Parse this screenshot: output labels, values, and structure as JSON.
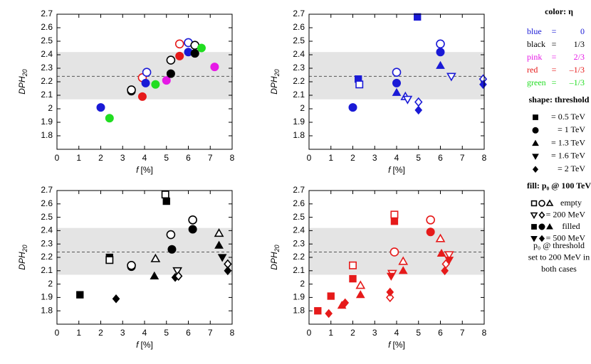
{
  "chart_data": [
    {
      "type": "scatter",
      "ylabel": "DPH",
      "ylabel_subscript": "20",
      "xlabel": "f",
      "xlabel_unit": "[%]",
      "xlim": [
        0,
        8
      ],
      "ylim": [
        1.7,
        2.7
      ],
      "xticks": [
        0,
        1,
        2,
        3,
        4,
        5,
        6,
        7,
        8
      ],
      "yticks": [
        1.8,
        1.9,
        2,
        2.1,
        2.2,
        2.3,
        2.4,
        2.5,
        2.6,
        2.7
      ],
      "band": [
        2.07,
        2.42
      ],
      "reference_line": 2.24,
      "points": [
        {
          "x": 2.0,
          "y": 2.01,
          "color": "#1a1ad6",
          "shape": "circle",
          "fill": true
        },
        {
          "x": 2.4,
          "y": 1.93,
          "color": "#21dd21",
          "shape": "circle",
          "fill": true
        },
        {
          "x": 3.4,
          "y": 2.13,
          "color": "#000000",
          "shape": "circle",
          "fill": true
        },
        {
          "x": 3.4,
          "y": 2.14,
          "color": "#000000",
          "shape": "circle",
          "fill": false
        },
        {
          "x": 3.9,
          "y": 2.09,
          "color": "#e61a1a",
          "shape": "circle",
          "fill": true
        },
        {
          "x": 3.9,
          "y": 2.23,
          "color": "#e61a1a",
          "shape": "circle",
          "fill": false
        },
        {
          "x": 4.1,
          "y": 2.27,
          "color": "#1a1ad6",
          "shape": "circle",
          "fill": false
        },
        {
          "x": 4.05,
          "y": 2.19,
          "color": "#1a1ad6",
          "shape": "circle",
          "fill": true
        },
        {
          "x": 4.5,
          "y": 2.18,
          "color": "#21dd21",
          "shape": "circle",
          "fill": true
        },
        {
          "x": 5.0,
          "y": 2.21,
          "color": "#e619e6",
          "shape": "circle",
          "fill": true
        },
        {
          "x": 5.2,
          "y": 2.26,
          "color": "#000000",
          "shape": "circle",
          "fill": true
        },
        {
          "x": 5.2,
          "y": 2.36,
          "color": "#000000",
          "shape": "circle",
          "fill": false
        },
        {
          "x": 5.6,
          "y": 2.39,
          "color": "#e61a1a",
          "shape": "circle",
          "fill": true
        },
        {
          "x": 5.6,
          "y": 2.48,
          "color": "#e61a1a",
          "shape": "circle",
          "fill": false
        },
        {
          "x": 6.0,
          "y": 2.49,
          "color": "#1a1ad6",
          "shape": "circle",
          "fill": false
        },
        {
          "x": 6.3,
          "y": 2.47,
          "color": "#000000",
          "shape": "circle",
          "fill": false
        },
        {
          "x": 6.0,
          "y": 2.42,
          "color": "#1a1ad6",
          "shape": "circle",
          "fill": true
        },
        {
          "x": 6.3,
          "y": 2.41,
          "color": "#000000",
          "shape": "circle",
          "fill": true
        },
        {
          "x": 6.6,
          "y": 2.45,
          "color": "#21dd21",
          "shape": "circle",
          "fill": true
        },
        {
          "x": 7.2,
          "y": 2.31,
          "color": "#e619e6",
          "shape": "circle",
          "fill": true
        }
      ]
    },
    {
      "type": "scatter",
      "ylabel": "DPH",
      "ylabel_subscript": "20",
      "xlabel": "f",
      "xlabel_unit": "[%]",
      "xlim": [
        0,
        8
      ],
      "ylim": [
        1.7,
        2.7
      ],
      "xticks": [
        0,
        1,
        2,
        3,
        4,
        5,
        6,
        7,
        8
      ],
      "yticks": [
        1.8,
        1.9,
        2,
        2.1,
        2.2,
        2.3,
        2.4,
        2.5,
        2.6,
        2.7
      ],
      "band": [
        2.07,
        2.42
      ],
      "reference_line": 2.24,
      "points": [
        {
          "x": 2.0,
          "y": 2.01,
          "color": "#1a1ad6",
          "shape": "circle",
          "fill": true
        },
        {
          "x": 2.25,
          "y": 2.22,
          "color": "#1a1ad6",
          "shape": "square",
          "fill": true
        },
        {
          "x": 2.3,
          "y": 2.18,
          "color": "#1a1ad6",
          "shape": "square",
          "fill": false
        },
        {
          "x": 4.0,
          "y": 2.27,
          "color": "#1a1ad6",
          "shape": "circle",
          "fill": false
        },
        {
          "x": 4.0,
          "y": 2.19,
          "color": "#1a1ad6",
          "shape": "circle",
          "fill": true
        },
        {
          "x": 4.0,
          "y": 2.12,
          "color": "#1a1ad6",
          "shape": "triangle",
          "fill": true
        },
        {
          "x": 4.4,
          "y": 2.09,
          "color": "#1a1ad6",
          "shape": "triangle",
          "fill": false
        },
        {
          "x": 4.5,
          "y": 2.07,
          "color": "#1a1ad6",
          "shape": "triangle-down",
          "fill": false
        },
        {
          "x": 4.95,
          "y": 2.68,
          "color": "#1a1ad6",
          "shape": "square",
          "fill": true
        },
        {
          "x": 5.0,
          "y": 2.05,
          "color": "#1a1ad6",
          "shape": "diamond",
          "fill": false
        },
        {
          "x": 5.0,
          "y": 1.99,
          "color": "#1a1ad6",
          "shape": "diamond",
          "fill": true
        },
        {
          "x": 6.0,
          "y": 2.48,
          "color": "#1a1ad6",
          "shape": "circle",
          "fill": false
        },
        {
          "x": 6.0,
          "y": 2.42,
          "color": "#1a1ad6",
          "shape": "circle",
          "fill": true
        },
        {
          "x": 6.0,
          "y": 2.32,
          "color": "#1a1ad6",
          "shape": "triangle",
          "fill": true
        },
        {
          "x": 6.5,
          "y": 2.24,
          "color": "#1a1ad6",
          "shape": "triangle-down",
          "fill": false
        },
        {
          "x": 7.95,
          "y": 2.22,
          "color": "#1a1ad6",
          "shape": "diamond",
          "fill": false
        },
        {
          "x": 7.95,
          "y": 2.18,
          "color": "#1a1ad6",
          "shape": "diamond",
          "fill": true
        }
      ]
    },
    {
      "type": "scatter",
      "ylabel": "DPH",
      "ylabel_subscript": "20",
      "xlabel": "f",
      "xlabel_unit": "[%]",
      "xlim": [
        0,
        8
      ],
      "ylim": [
        1.7,
        2.7
      ],
      "xticks": [
        0,
        1,
        2,
        3,
        4,
        5,
        6,
        7,
        8
      ],
      "yticks": [
        1.8,
        1.9,
        2,
        2.1,
        2.2,
        2.3,
        2.4,
        2.5,
        2.6,
        2.7
      ],
      "band": [
        2.07,
        2.42
      ],
      "reference_line": 2.24,
      "points": [
        {
          "x": 1.05,
          "y": 1.92,
          "color": "#000000",
          "shape": "square",
          "fill": true
        },
        {
          "x": 2.7,
          "y": 1.89,
          "color": "#000000",
          "shape": "diamond",
          "fill": true
        },
        {
          "x": 2.4,
          "y": 2.2,
          "color": "#000000",
          "shape": "square",
          "fill": true
        },
        {
          "x": 2.4,
          "y": 2.18,
          "color": "#000000",
          "shape": "square",
          "fill": false
        },
        {
          "x": 3.4,
          "y": 2.13,
          "color": "#000000",
          "shape": "circle",
          "fill": true
        },
        {
          "x": 3.4,
          "y": 2.14,
          "color": "#000000",
          "shape": "circle",
          "fill": false
        },
        {
          "x": 4.5,
          "y": 2.19,
          "color": "#000000",
          "shape": "triangle",
          "fill": false
        },
        {
          "x": 4.45,
          "y": 2.06,
          "color": "#000000",
          "shape": "triangle",
          "fill": true
        },
        {
          "x": 4.95,
          "y": 2.67,
          "color": "#000000",
          "shape": "square",
          "fill": false
        },
        {
          "x": 5.0,
          "y": 2.62,
          "color": "#000000",
          "shape": "square",
          "fill": true
        },
        {
          "x": 5.2,
          "y": 2.37,
          "color": "#000000",
          "shape": "circle",
          "fill": false
        },
        {
          "x": 5.25,
          "y": 2.26,
          "color": "#000000",
          "shape": "circle",
          "fill": true
        },
        {
          "x": 5.4,
          "y": 2.05,
          "color": "#000000",
          "shape": "diamond",
          "fill": true
        },
        {
          "x": 5.5,
          "y": 2.1,
          "color": "#000000",
          "shape": "triangle-down",
          "fill": false
        },
        {
          "x": 5.55,
          "y": 2.06,
          "color": "#000000",
          "shape": "diamond",
          "fill": false
        },
        {
          "x": 6.2,
          "y": 2.48,
          "color": "#000000",
          "shape": "circle",
          "fill": false
        },
        {
          "x": 6.2,
          "y": 2.41,
          "color": "#000000",
          "shape": "circle",
          "fill": true
        },
        {
          "x": 7.4,
          "y": 2.38,
          "color": "#000000",
          "shape": "triangle",
          "fill": false
        },
        {
          "x": 7.4,
          "y": 2.29,
          "color": "#000000",
          "shape": "triangle",
          "fill": true
        },
        {
          "x": 7.55,
          "y": 2.2,
          "color": "#000000",
          "shape": "triangle-down",
          "fill": true
        },
        {
          "x": 7.8,
          "y": 2.15,
          "color": "#000000",
          "shape": "diamond",
          "fill": false
        },
        {
          "x": 7.8,
          "y": 2.1,
          "color": "#000000",
          "shape": "diamond",
          "fill": true
        }
      ]
    },
    {
      "type": "scatter",
      "ylabel": "DPH",
      "ylabel_subscript": "20",
      "xlabel": "f",
      "xlabel_unit": "[%]",
      "xlim": [
        0,
        8
      ],
      "ylim": [
        1.7,
        2.7
      ],
      "xticks": [
        0,
        1,
        2,
        3,
        4,
        5,
        6,
        7,
        8
      ],
      "yticks": [
        1.8,
        1.9,
        2,
        2.1,
        2.2,
        2.3,
        2.4,
        2.5,
        2.6,
        2.7
      ],
      "band": [
        2.07,
        2.42
      ],
      "reference_line": 2.24,
      "points": [
        {
          "x": 0.4,
          "y": 1.8,
          "color": "#e61a1a",
          "shape": "square",
          "fill": true
        },
        {
          "x": 0.9,
          "y": 1.78,
          "color": "#e61a1a",
          "shape": "diamond",
          "fill": true
        },
        {
          "x": 1.0,
          "y": 1.91,
          "color": "#e61a1a",
          "shape": "square",
          "fill": true
        },
        {
          "x": 1.5,
          "y": 1.84,
          "color": "#e61a1a",
          "shape": "triangle",
          "fill": true
        },
        {
          "x": 1.65,
          "y": 1.86,
          "color": "#e61a1a",
          "shape": "diamond",
          "fill": true
        },
        {
          "x": 2.0,
          "y": 2.14,
          "color": "#e61a1a",
          "shape": "square",
          "fill": false
        },
        {
          "x": 2.0,
          "y": 2.04,
          "color": "#e61a1a",
          "shape": "square",
          "fill": true
        },
        {
          "x": 2.35,
          "y": 1.99,
          "color": "#e61a1a",
          "shape": "triangle",
          "fill": false
        },
        {
          "x": 2.35,
          "y": 1.92,
          "color": "#e61a1a",
          "shape": "triangle",
          "fill": true
        },
        {
          "x": 3.7,
          "y": 1.9,
          "color": "#e61a1a",
          "shape": "diamond",
          "fill": false
        },
        {
          "x": 3.7,
          "y": 1.94,
          "color": "#e61a1a",
          "shape": "diamond",
          "fill": true
        },
        {
          "x": 3.8,
          "y": 2.08,
          "color": "#e61a1a",
          "shape": "triangle-down",
          "fill": false
        },
        {
          "x": 3.75,
          "y": 2.06,
          "color": "#e61a1a",
          "shape": "triangle-down",
          "fill": true
        },
        {
          "x": 3.9,
          "y": 2.24,
          "color": "#e61a1a",
          "shape": "circle",
          "fill": false
        },
        {
          "x": 3.9,
          "y": 2.52,
          "color": "#e61a1a",
          "shape": "square",
          "fill": false
        },
        {
          "x": 3.9,
          "y": 2.47,
          "color": "#e61a1a",
          "shape": "square",
          "fill": true
        },
        {
          "x": 4.3,
          "y": 2.17,
          "color": "#e61a1a",
          "shape": "triangle",
          "fill": false
        },
        {
          "x": 4.3,
          "y": 2.1,
          "color": "#e61a1a",
          "shape": "triangle",
          "fill": true
        },
        {
          "x": 5.55,
          "y": 2.48,
          "color": "#e61a1a",
          "shape": "circle",
          "fill": false
        },
        {
          "x": 5.55,
          "y": 2.39,
          "color": "#e61a1a",
          "shape": "circle",
          "fill": true
        },
        {
          "x": 6.0,
          "y": 2.34,
          "color": "#e61a1a",
          "shape": "triangle",
          "fill": false
        },
        {
          "x": 6.05,
          "y": 2.23,
          "color": "#e61a1a",
          "shape": "triangle",
          "fill": true
        },
        {
          "x": 6.25,
          "y": 2.15,
          "color": "#e61a1a",
          "shape": "diamond",
          "fill": false
        },
        {
          "x": 6.2,
          "y": 2.1,
          "color": "#e61a1a",
          "shape": "diamond",
          "fill": true
        },
        {
          "x": 6.4,
          "y": 2.22,
          "color": "#e61a1a",
          "shape": "triangle-down",
          "fill": false
        },
        {
          "x": 6.4,
          "y": 2.18,
          "color": "#e61a1a",
          "shape": "triangle-down",
          "fill": true
        }
      ]
    }
  ],
  "legend": {
    "color_title": "color: η",
    "colors": [
      {
        "name": "blue",
        "eq": "=",
        "value": 0,
        "color": "#1a1ad6"
      },
      {
        "name": "black",
        "eq": "=",
        "value": "1/3",
        "color": "#000000"
      },
      {
        "name": "pink",
        "eq": "=",
        "value": "2/3",
        "color": "#e619e6"
      },
      {
        "name": "red",
        "eq": "=",
        "value": "–1/3",
        "color": "#e61a1a"
      },
      {
        "name": "green",
        "eq": "=",
        "value": "–1/3",
        "color": "#21dd21"
      }
    ],
    "shape_title": "shape: threshold",
    "shapes": [
      {
        "shape": "square",
        "label": "= 0.5 TeV"
      },
      {
        "shape": "circle",
        "label": "= 1 TeV"
      },
      {
        "shape": "triangle",
        "label": "= 1.3 TeV"
      },
      {
        "shape": "triangle-down",
        "label": "= 1.6 TeV"
      },
      {
        "shape": "diamond",
        "label": "= 2 TeV"
      }
    ],
    "fill_title": "fill: p₀ @ 100 TeV",
    "fills": [
      {
        "shapes": [
          "square",
          "circle",
          "triangle"
        ],
        "fill": false,
        "label": "empty"
      },
      {
        "shapes": [
          "triangle-down",
          "diamond"
        ],
        "fill": false,
        "label": "= 200 MeV"
      },
      {
        "shapes": [
          "square",
          "circle",
          "triangle"
        ],
        "fill": true,
        "label": "filled"
      },
      {
        "shapes": [
          "triangle-down",
          "diamond"
        ],
        "fill": true,
        "label": "= 500 MeV"
      }
    ],
    "note": [
      "p₀ @ threshold",
      "set to 200 MeV in",
      "both cases"
    ]
  }
}
